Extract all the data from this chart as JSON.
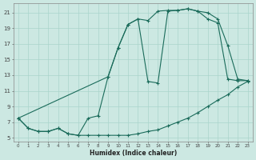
{
  "xlabel": "Humidex (Indice chaleur)",
  "bg_color": "#cce8e2",
  "grid_color": "#aad4cc",
  "line_color": "#1a6b5a",
  "xlim": [
    -0.5,
    23.5
  ],
  "ylim": [
    4.5,
    22.2
  ],
  "xticks": [
    0,
    1,
    2,
    3,
    4,
    5,
    6,
    7,
    8,
    9,
    10,
    11,
    12,
    13,
    14,
    15,
    16,
    17,
    18,
    19,
    20,
    21,
    22,
    23
  ],
  "yticks": [
    5,
    7,
    9,
    11,
    13,
    15,
    17,
    19,
    21
  ],
  "line1": {
    "x": [
      0,
      1,
      2,
      3,
      4,
      5,
      6,
      7,
      8,
      9,
      10,
      11,
      12,
      13,
      14,
      15,
      16,
      17,
      18,
      19,
      20,
      21,
      22,
      23
    ],
    "y": [
      7.5,
      6.2,
      5.8,
      5.8,
      6.2,
      5.5,
      5.3,
      5.3,
      5.3,
      5.3,
      5.3,
      5.3,
      5.5,
      5.8,
      6.0,
      6.5,
      7.0,
      7.5,
      8.2,
      9.0,
      9.8,
      10.5,
      11.5,
      12.2
    ]
  },
  "line2": {
    "x": [
      0,
      1,
      2,
      3,
      4,
      5,
      6,
      7,
      8,
      9,
      10,
      11,
      12,
      13,
      14,
      15,
      16,
      17,
      18,
      19,
      20,
      21,
      22,
      23
    ],
    "y": [
      7.5,
      6.2,
      5.8,
      5.8,
      6.2,
      5.5,
      5.3,
      7.5,
      7.8,
      12.8,
      16.5,
      19.5,
      20.2,
      20.0,
      21.2,
      21.3,
      21.3,
      21.5,
      21.2,
      21.0,
      20.2,
      16.8,
      12.5,
      12.3
    ]
  },
  "line3": {
    "x": [
      0,
      9,
      10,
      11,
      12,
      13,
      14,
      15,
      16,
      17,
      18,
      19,
      20,
      21,
      22,
      23
    ],
    "y": [
      7.5,
      12.8,
      16.5,
      19.5,
      20.2,
      12.2,
      12.0,
      21.2,
      21.3,
      21.5,
      21.2,
      20.2,
      19.7,
      12.5,
      12.3,
      12.3
    ]
  }
}
